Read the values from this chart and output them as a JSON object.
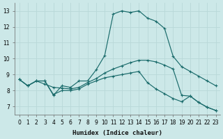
{
  "xlabel": "Humidex (Indice chaleur)",
  "bg_color": "#cce8e8",
  "line_color": "#1a6b6b",
  "grid_color": "#b8d8d8",
  "xlim": [
    -0.5,
    23.5
  ],
  "ylim": [
    6.5,
    13.5
  ],
  "yticks": [
    7,
    8,
    9,
    10,
    11,
    12,
    13
  ],
  "xticks": [
    0,
    1,
    2,
    3,
    4,
    5,
    6,
    7,
    8,
    9,
    10,
    11,
    12,
    13,
    14,
    15,
    16,
    17,
    18,
    19,
    20,
    21,
    22,
    23
  ],
  "line1_x": [
    0,
    1,
    2,
    3,
    4,
    5,
    6,
    7,
    8,
    9,
    10,
    11,
    12,
    13,
    14,
    15,
    16,
    17,
    18,
    19,
    20,
    21,
    22,
    23
  ],
  "line1_y": [
    8.7,
    8.3,
    8.6,
    8.6,
    7.7,
    8.3,
    8.2,
    8.6,
    8.6,
    9.3,
    10.2,
    12.8,
    13.0,
    12.9,
    13.0,
    12.55,
    12.35,
    11.9,
    10.15,
    9.5,
    9.2,
    8.9,
    8.6,
    8.3
  ],
  "line2_x": [
    0,
    1,
    2,
    3,
    4,
    5,
    6,
    7,
    8,
    9,
    10,
    11,
    12,
    13,
    14,
    15,
    16,
    17,
    18,
    19,
    20,
    21,
    22,
    23
  ],
  "line2_y": [
    8.7,
    8.3,
    8.6,
    8.4,
    8.2,
    8.15,
    8.1,
    8.2,
    8.5,
    8.75,
    9.1,
    9.35,
    9.55,
    9.75,
    9.9,
    9.9,
    9.8,
    9.6,
    9.35,
    7.7,
    7.65,
    7.25,
    6.95,
    6.75
  ],
  "line3_x": [
    0,
    1,
    2,
    3,
    4,
    5,
    6,
    7,
    8,
    9,
    10,
    11,
    12,
    13,
    14,
    15,
    16,
    17,
    18,
    19,
    20,
    21,
    22,
    23
  ],
  "line3_y": [
    8.7,
    8.3,
    8.6,
    8.6,
    7.75,
    8.0,
    8.0,
    8.1,
    8.4,
    8.6,
    8.8,
    8.9,
    9.0,
    9.1,
    9.2,
    8.5,
    8.1,
    7.8,
    7.5,
    7.3,
    7.65,
    7.25,
    6.95,
    6.75
  ]
}
